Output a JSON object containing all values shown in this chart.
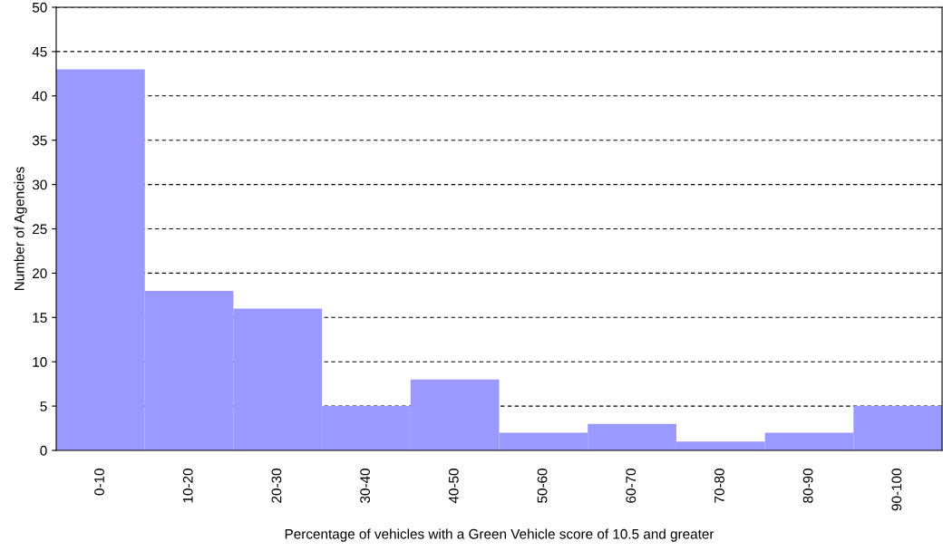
{
  "chart_data": {
    "type": "bar",
    "xlabel": "Percentage of vehicles with a Green Vehicle score of 10.5 and greater",
    "ylabel": "Number of Agencies",
    "categories": [
      "0-10",
      "10-20",
      "20-30",
      "30-40",
      "40-50",
      "50-60",
      "60-70",
      "70-80",
      "80-90",
      "90-100"
    ],
    "values": [
      43,
      18,
      16,
      5,
      8,
      2,
      3,
      1,
      2,
      5
    ],
    "color": "#9999ff",
    "ylim": [
      0,
      50
    ],
    "yticks": [
      0,
      5,
      10,
      15,
      20,
      25,
      30,
      35,
      40,
      45,
      50
    ],
    "grid": "y"
  }
}
